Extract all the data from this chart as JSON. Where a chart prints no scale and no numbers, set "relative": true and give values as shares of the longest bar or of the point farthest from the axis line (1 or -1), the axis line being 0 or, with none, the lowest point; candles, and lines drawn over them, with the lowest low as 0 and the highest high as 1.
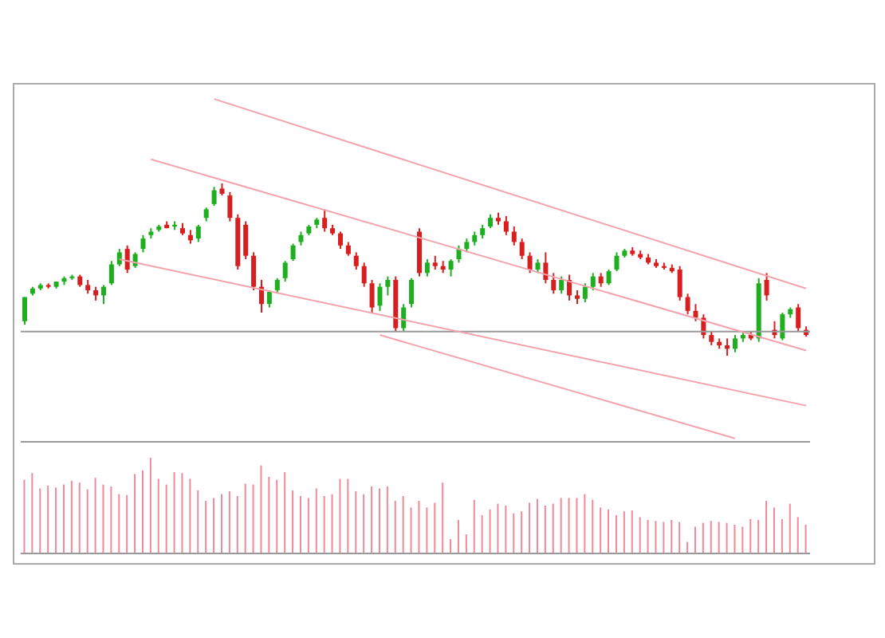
{
  "chart_data": [
    {
      "type": "candlestick",
      "relative": true,
      "categories": [
        null,
        null,
        null,
        null,
        null,
        null,
        null,
        null,
        null,
        null,
        null,
        null,
        null,
        null,
        null,
        null,
        null,
        null,
        null,
        null,
        null,
        null,
        null,
        null,
        null,
        null,
        null,
        null,
        null,
        null,
        null,
        null,
        null,
        null,
        null,
        null,
        null,
        null,
        null,
        null,
        null,
        null,
        null,
        null,
        null,
        null,
        null,
        null,
        null,
        null,
        null,
        null,
        null,
        null,
        null,
        null,
        null,
        null,
        null,
        null,
        null,
        null,
        null,
        null,
        null,
        null,
        null,
        null,
        null,
        null,
        null,
        null,
        null,
        null,
        null,
        null,
        null,
        null,
        null,
        null,
        null,
        null,
        null,
        null,
        null,
        null,
        null,
        null,
        null,
        null,
        null,
        null,
        null,
        null,
        null,
        null,
        null,
        null,
        null,
        null
      ],
      "ohlc": [
        [
          0.2,
          0.34,
          0.18,
          0.34
        ],
        [
          0.36,
          0.4,
          0.35,
          0.39
        ],
        [
          0.39,
          0.42,
          0.38,
          0.41
        ],
        [
          0.41,
          0.42,
          0.39,
          0.4
        ],
        [
          0.4,
          0.43,
          0.39,
          0.43
        ],
        [
          0.43,
          0.46,
          0.41,
          0.45
        ],
        [
          0.45,
          0.47,
          0.44,
          0.46
        ],
        [
          0.46,
          0.47,
          0.4,
          0.41
        ],
        [
          0.41,
          0.44,
          0.36,
          0.38
        ],
        [
          0.38,
          0.4,
          0.32,
          0.35
        ],
        [
          0.35,
          0.41,
          0.3,
          0.4
        ],
        [
          0.42,
          0.55,
          0.41,
          0.53
        ],
        [
          0.53,
          0.62,
          0.52,
          0.6
        ],
        [
          0.62,
          0.64,
          0.48,
          0.5
        ],
        [
          0.52,
          0.6,
          0.51,
          0.59
        ],
        [
          0.62,
          0.7,
          0.6,
          0.68
        ],
        [
          0.7,
          0.74,
          0.68,
          0.72
        ],
        [
          0.73,
          0.76,
          0.72,
          0.75
        ],
        [
          0.76,
          0.78,
          0.74,
          0.74
        ],
        [
          0.75,
          0.78,
          0.73,
          0.76
        ],
        [
          0.74,
          0.77,
          0.7,
          0.71
        ],
        [
          0.7,
          0.73,
          0.65,
          0.67
        ],
        [
          0.68,
          0.76,
          0.66,
          0.75
        ],
        [
          0.8,
          0.86,
          0.78,
          0.85
        ],
        [
          0.88,
          0.98,
          0.87,
          0.96
        ],
        [
          0.97,
          1.0,
          0.93,
          0.94
        ],
        [
          0.93,
          0.95,
          0.78,
          0.8
        ],
        [
          0.8,
          0.82,
          0.5,
          0.52
        ],
        [
          0.76,
          0.78,
          0.56,
          0.58
        ],
        [
          0.58,
          0.6,
          0.38,
          0.4
        ],
        [
          0.4,
          0.44,
          0.25,
          0.3
        ],
        [
          0.3,
          0.38,
          0.28,
          0.37
        ],
        [
          0.38,
          0.45,
          0.36,
          0.44
        ],
        [
          0.45,
          0.55,
          0.43,
          0.54
        ],
        [
          0.56,
          0.65,
          0.55,
          0.64
        ],
        [
          0.66,
          0.72,
          0.64,
          0.7
        ],
        [
          0.71,
          0.76,
          0.7,
          0.75
        ],
        [
          0.76,
          0.8,
          0.74,
          0.79
        ],
        [
          0.8,
          0.85,
          0.72,
          0.74
        ],
        [
          0.74,
          0.76,
          0.7,
          0.71
        ],
        [
          0.71,
          0.72,
          0.62,
          0.64
        ],
        [
          0.64,
          0.66,
          0.58,
          0.59
        ],
        [
          0.58,
          0.6,
          0.5,
          0.52
        ],
        [
          0.52,
          0.54,
          0.4,
          0.42
        ],
        [
          0.42,
          0.44,
          0.25,
          0.28
        ],
        [
          0.29,
          0.42,
          0.26,
          0.4
        ],
        [
          0.4,
          0.46,
          0.35,
          0.44
        ],
        [
          0.44,
          0.46,
          0.14,
          0.16
        ],
        [
          0.16,
          0.3,
          0.14,
          0.28
        ],
        [
          0.3,
          0.45,
          0.28,
          0.44
        ],
        [
          0.72,
          0.74,
          0.46,
          0.48
        ],
        [
          0.48,
          0.56,
          0.46,
          0.54
        ],
        [
          0.54,
          0.58,
          0.5,
          0.52
        ],
        [
          0.52,
          0.55,
          0.48,
          0.5
        ],
        [
          0.5,
          0.56,
          0.46,
          0.55
        ],
        [
          0.56,
          0.64,
          0.54,
          0.62
        ],
        [
          0.62,
          0.68,
          0.6,
          0.66
        ],
        [
          0.66,
          0.72,
          0.64,
          0.7
        ],
        [
          0.7,
          0.76,
          0.68,
          0.74
        ],
        [
          0.75,
          0.82,
          0.74,
          0.8
        ],
        [
          0.8,
          0.83,
          0.76,
          0.78
        ],
        [
          0.78,
          0.81,
          0.7,
          0.72
        ],
        [
          0.72,
          0.75,
          0.64,
          0.66
        ],
        [
          0.66,
          0.68,
          0.56,
          0.58
        ],
        [
          0.58,
          0.6,
          0.48,
          0.5
        ],
        [
          0.5,
          0.56,
          0.48,
          0.54
        ],
        [
          0.54,
          0.6,
          0.42,
          0.44
        ],
        [
          0.44,
          0.48,
          0.36,
          0.38
        ],
        [
          0.38,
          0.46,
          0.36,
          0.44
        ],
        [
          0.44,
          0.47,
          0.32,
          0.35
        ],
        [
          0.35,
          0.38,
          0.3,
          0.33
        ],
        [
          0.33,
          0.42,
          0.31,
          0.4
        ],
        [
          0.4,
          0.48,
          0.38,
          0.46
        ],
        [
          0.46,
          0.48,
          0.4,
          0.42
        ],
        [
          0.42,
          0.5,
          0.41,
          0.49
        ],
        [
          0.5,
          0.6,
          0.49,
          0.58
        ],
        [
          0.58,
          0.62,
          0.57,
          0.61
        ],
        [
          0.61,
          0.63,
          0.58,
          0.59
        ],
        [
          0.59,
          0.61,
          0.56,
          0.57
        ],
        [
          0.57,
          0.59,
          0.53,
          0.54
        ],
        [
          0.54,
          0.56,
          0.51,
          0.52
        ],
        [
          0.52,
          0.54,
          0.5,
          0.51
        ],
        [
          0.51,
          0.53,
          0.48,
          0.49
        ],
        [
          0.5,
          0.52,
          0.32,
          0.34
        ],
        [
          0.34,
          0.36,
          0.24,
          0.26
        ],
        [
          0.26,
          0.3,
          0.2,
          0.22
        ],
        [
          0.22,
          0.24,
          0.1,
          0.12
        ],
        [
          0.12,
          0.14,
          0.06,
          0.08
        ],
        [
          0.08,
          0.1,
          0.04,
          0.06
        ],
        [
          0.06,
          0.1,
          0.0,
          0.04
        ],
        [
          0.04,
          0.12,
          0.02,
          0.1
        ],
        [
          0.1,
          0.14,
          0.08,
          0.12
        ],
        [
          0.12,
          0.14,
          0.09,
          0.1
        ],
        [
          0.1,
          0.45,
          0.08,
          0.42
        ],
        [
          0.44,
          0.48,
          0.32,
          0.35
        ],
        [
          0.15,
          0.2,
          0.1,
          0.12
        ],
        [
          0.1,
          0.25,
          0.09,
          0.24
        ],
        [
          0.24,
          0.28,
          0.22,
          0.27
        ],
        [
          0.28,
          0.3,
          0.14,
          0.16
        ],
        [
          0.15,
          0.17,
          0.11,
          0.12
        ]
      ],
      "colors": [
        "#1fae1f",
        "#1fae1f",
        "#1fae1f",
        "#d81e1e",
        "#1fae1f",
        "#1fae1f",
        "#1fae1f",
        "#d81e1e",
        "#d81e1e",
        "#d81e1e",
        "#1fae1f",
        "#1fae1f",
        "#1fae1f",
        "#d81e1e",
        "#1fae1f",
        "#1fae1f",
        "#1fae1f",
        "#1fae1f",
        "#d81e1e",
        "#1fae1f",
        "#d81e1e",
        "#d81e1e",
        "#1fae1f",
        "#1fae1f",
        "#1fae1f",
        "#d81e1e",
        "#d81e1e",
        "#d81e1e",
        "#d81e1e",
        "#d81e1e",
        "#d81e1e",
        "#1fae1f",
        "#1fae1f",
        "#1fae1f",
        "#1fae1f",
        "#1fae1f",
        "#1fae1f",
        "#1fae1f",
        "#d81e1e",
        "#d81e1e",
        "#d81e1e",
        "#d81e1e",
        "#d81e1e",
        "#d81e1e",
        "#d81e1e",
        "#1fae1f",
        "#1fae1f",
        "#d81e1e",
        "#1fae1f",
        "#1fae1f",
        "#d81e1e",
        "#1fae1f",
        "#d81e1e",
        "#d81e1e",
        "#1fae1f",
        "#1fae1f",
        "#1fae1f",
        "#1fae1f",
        "#1fae1f",
        "#1fae1f",
        "#d81e1e",
        "#d81e1e",
        "#d81e1e",
        "#d81e1e",
        "#d81e1e",
        "#1fae1f",
        "#d81e1e",
        "#d81e1e",
        "#1fae1f",
        "#d81e1e",
        "#d81e1e",
        "#1fae1f",
        "#1fae1f",
        "#d81e1e",
        "#1fae1f",
        "#1fae1f",
        "#1fae1f",
        "#d81e1e",
        "#d81e1e",
        "#d81e1e",
        "#d81e1e",
        "#d81e1e",
        "#d81e1e",
        "#d81e1e",
        "#d81e1e",
        "#d81e1e",
        "#d81e1e",
        "#d81e1e",
        "#d81e1e",
        "#d81e1e",
        "#1fae1f",
        "#1fae1f",
        "#d81e1e",
        "#1fae1f",
        "#d81e1e",
        "#d81e1e",
        "#1fae1f",
        "#1fae1f",
        "#d81e1e",
        "#d81e1e"
      ],
      "series": [
        {
          "type": "line",
          "color": "#f3a3ad",
          "values": [
            null,
            null,
            null,
            null,
            null,
            null,
            null,
            null,
            null,
            null,
            null,
            null,
            null,
            null,
            null,
            null,
            null,
            null,
            null,
            null,
            null,
            null,
            null,
            null,
            1.49,
            null,
            null,
            null,
            null,
            null,
            null,
            null,
            null,
            null,
            null,
            null,
            null,
            null,
            null,
            null,
            null,
            null,
            null,
            null,
            null,
            null,
            null,
            null,
            null,
            null,
            null,
            null,
            null,
            null,
            null,
            null,
            null,
            null,
            null,
            null,
            null,
            null,
            null,
            null,
            null,
            null,
            null,
            null,
            null,
            null,
            null,
            null,
            null,
            null,
            null,
            null,
            null,
            null,
            null,
            null,
            null,
            null,
            null,
            null,
            null,
            null,
            null,
            null,
            null,
            null,
            null,
            null,
            null,
            null,
            null,
            null,
            null,
            null,
            null,
            0.39
          ]
        },
        {
          "type": "line",
          "color": "#f3a3ad",
          "values": [
            null,
            null,
            null,
            null,
            null,
            null,
            null,
            null,
            null,
            null,
            null,
            null,
            null,
            null,
            null,
            null,
            1.14,
            null,
            null,
            null,
            null,
            null,
            null,
            null,
            null,
            null,
            null,
            null,
            null,
            null,
            null,
            null,
            null,
            null,
            null,
            null,
            null,
            null,
            null,
            null,
            null,
            null,
            null,
            null,
            null,
            null,
            null,
            null,
            null,
            null,
            null,
            null,
            null,
            null,
            null,
            null,
            null,
            null,
            null,
            null,
            null,
            null,
            null,
            null,
            null,
            null,
            null,
            null,
            null,
            null,
            null,
            null,
            null,
            null,
            null,
            null,
            null,
            null,
            null,
            null,
            null,
            null,
            null,
            null,
            null,
            null,
            null,
            null,
            null,
            null,
            null,
            null,
            null,
            null,
            null,
            null,
            null,
            null,
            null,
            0.03
          ]
        },
        {
          "type": "line",
          "color": "#f3a3ad",
          "values": [
            null,
            null,
            null,
            null,
            null,
            null,
            null,
            null,
            null,
            null,
            null,
            null,
            0.56,
            null,
            null,
            null,
            null,
            null,
            null,
            null,
            null,
            null,
            null,
            null,
            null,
            null,
            null,
            null,
            null,
            null,
            null,
            null,
            null,
            null,
            null,
            null,
            null,
            null,
            null,
            null,
            null,
            null,
            null,
            null,
            null,
            null,
            null,
            null,
            null,
            null,
            null,
            null,
            null,
            null,
            null,
            null,
            null,
            null,
            null,
            null,
            null,
            null,
            null,
            null,
            null,
            null,
            null,
            null,
            null,
            null,
            null,
            null,
            null,
            null,
            null,
            null,
            null,
            null,
            null,
            null,
            null,
            null,
            null,
            null,
            null,
            null,
            null,
            null,
            null,
            null,
            null,
            null,
            null,
            null,
            null,
            null,
            null,
            null,
            null,
            -0.29
          ]
        },
        {
          "type": "line",
          "color": "#f3a3ad",
          "values": [
            null,
            null,
            null,
            null,
            null,
            null,
            null,
            null,
            null,
            null,
            null,
            null,
            null,
            null,
            null,
            null,
            null,
            null,
            null,
            null,
            null,
            null,
            null,
            null,
            null,
            null,
            null,
            null,
            null,
            null,
            null,
            null,
            null,
            null,
            null,
            null,
            null,
            null,
            null,
            null,
            null,
            null,
            null,
            null,
            null,
            0.12,
            null,
            null,
            null,
            null,
            null,
            null,
            null,
            null,
            null,
            null,
            null,
            null,
            null,
            null,
            null,
            null,
            null,
            null,
            null,
            null,
            null,
            null,
            null,
            null,
            null,
            null,
            null,
            null,
            null,
            null,
            null,
            null,
            null,
            null,
            null,
            null,
            null,
            null,
            null,
            null,
            null,
            null,
            null,
            null,
            -0.48,
            null,
            null,
            null,
            null,
            null,
            null,
            null,
            null,
            null
          ]
        }
      ],
      "ref_lines": [
        {
          "axis": "y",
          "value": 0.14,
          "color": "#999999"
        }
      ]
    },
    {
      "type": "bar",
      "relative": true,
      "color": "#f08a98",
      "categories": [
        null,
        null,
        null,
        null,
        null,
        null,
        null,
        null,
        null,
        null,
        null,
        null,
        null,
        null,
        null,
        null,
        null,
        null,
        null,
        null,
        null,
        null,
        null,
        null,
        null,
        null,
        null,
        null,
        null,
        null,
        null,
        null,
        null,
        null,
        null,
        null,
        null,
        null,
        null,
        null,
        null,
        null,
        null,
        null,
        null,
        null,
        null,
        null,
        null,
        null,
        null,
        null,
        null,
        null,
        null,
        null,
        null,
        null,
        null,
        null,
        null,
        null,
        null,
        null,
        null,
        null,
        null,
        null,
        null,
        null,
        null,
        null,
        null,
        null,
        null,
        null,
        null,
        null,
        null,
        null,
        null,
        null,
        null,
        null,
        null,
        null,
        null,
        null,
        null,
        null,
        null,
        null,
        null,
        null,
        null,
        null,
        null,
        null,
        null,
        null
      ],
      "values": [
        0.77,
        0.84,
        0.68,
        0.71,
        0.69,
        0.72,
        0.76,
        0.74,
        0.67,
        0.79,
        0.72,
        0.7,
        0.62,
        0.61,
        0.83,
        0.87,
        1.0,
        0.78,
        0.72,
        0.85,
        0.84,
        0.78,
        0.66,
        0.55,
        0.58,
        0.62,
        0.65,
        0.6,
        0.73,
        0.72,
        0.92,
        0.8,
        0.77,
        0.85,
        0.66,
        0.6,
        0.58,
        0.68,
        0.6,
        0.62,
        0.78,
        0.78,
        0.65,
        0.62,
        0.7,
        0.68,
        0.7,
        0.55,
        0.6,
        0.48,
        0.55,
        0.48,
        0.53,
        0.74,
        0.15,
        0.35,
        0.2,
        0.56,
        0.4,
        0.46,
        0.52,
        0.5,
        0.42,
        0.44,
        0.53,
        0.57,
        0.5,
        0.52,
        0.58,
        0.58,
        0.58,
        0.62,
        0.56,
        0.48,
        0.46,
        0.4,
        0.44,
        0.45,
        0.38,
        0.35,
        0.34,
        0.33,
        0.35,
        0.33,
        0.12,
        0.28,
        0.32,
        0.34,
        0.33,
        0.32,
        0.3,
        0.28,
        0.36,
        0.35,
        0.55,
        0.48,
        0.36,
        0.52,
        0.38,
        0.3
      ]
    }
  ]
}
